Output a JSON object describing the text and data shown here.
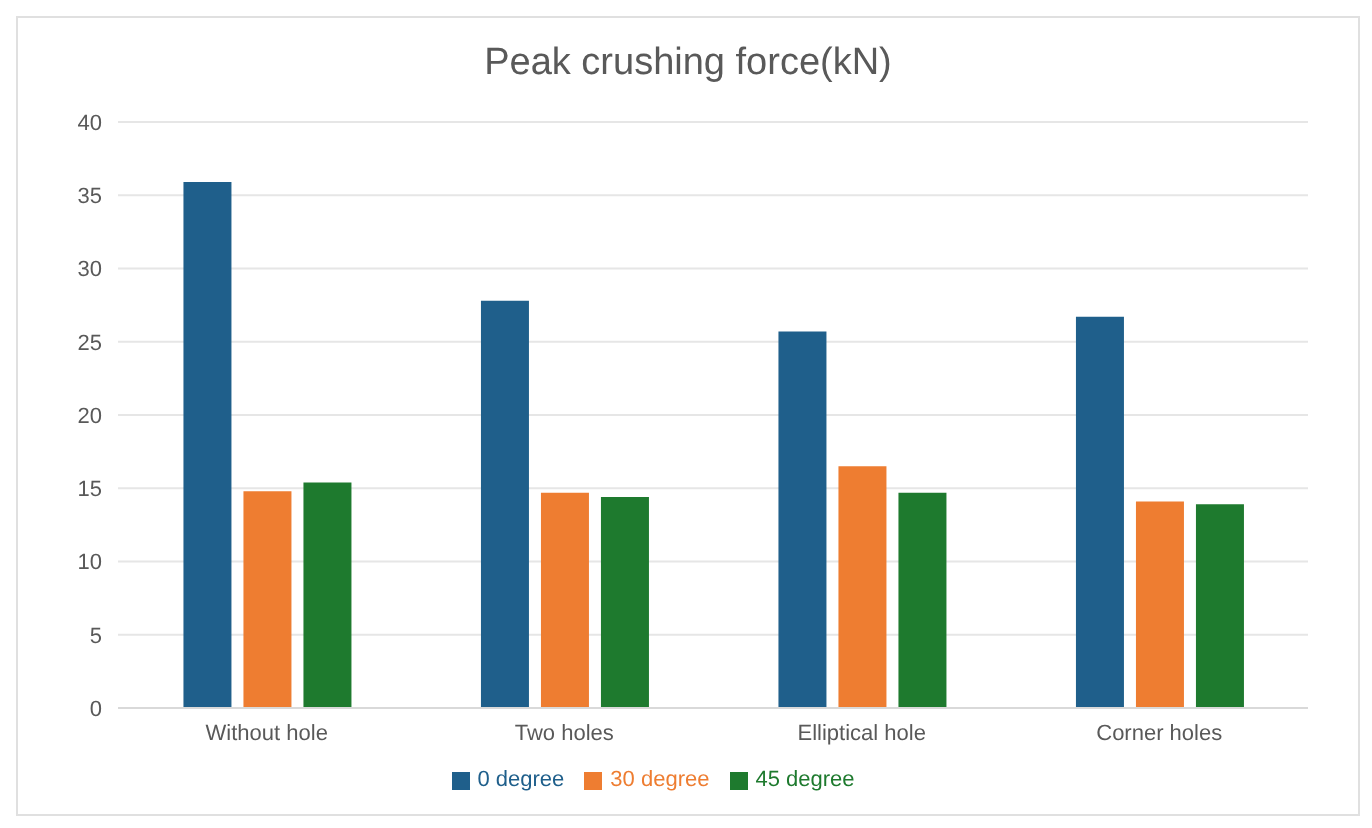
{
  "chart_data": {
    "type": "bar",
    "title": "Peak crushing force(kN)",
    "categories": [
      "Without hole",
      "Two holes",
      "Elliptical hole",
      "Corner holes"
    ],
    "series": [
      {
        "name": "0 degree",
        "color": "#1f5f8b",
        "values": [
          35.9,
          27.8,
          25.7,
          26.7
        ]
      },
      {
        "name": "30 degree",
        "color": "#ee7d31",
        "values": [
          14.8,
          14.7,
          16.5,
          14.1
        ]
      },
      {
        "name": "45 degree",
        "color": "#1e7a2e",
        "values": [
          15.4,
          14.4,
          14.7,
          13.9
        ]
      }
    ],
    "ylim": [
      0,
      40
    ],
    "yticks": [
      0,
      5,
      10,
      15,
      20,
      25,
      30,
      35,
      40
    ],
    "grid": "y",
    "legend": "bottom"
  }
}
